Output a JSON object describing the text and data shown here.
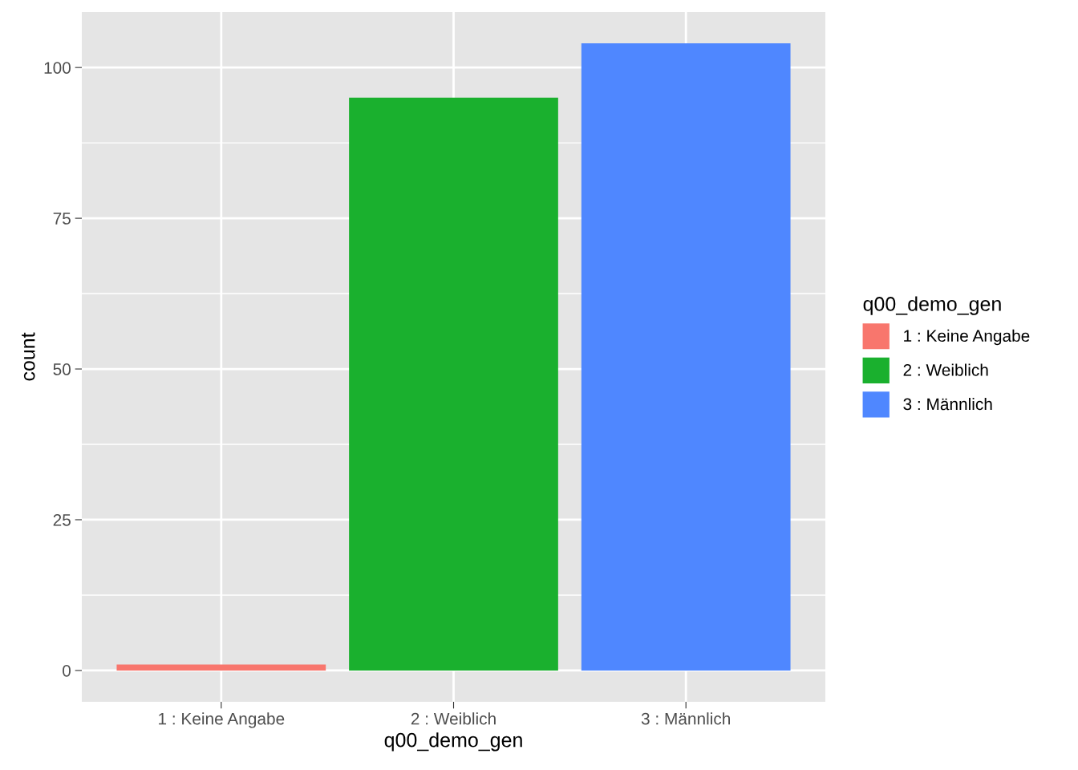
{
  "chart_data": {
    "type": "bar",
    "xlabel": "q00_demo_gen",
    "ylabel": "count",
    "legend_title": "q00_demo_gen",
    "categories": [
      "1 : Keine Angabe",
      "2 : Weiblich",
      "3 : Männlich"
    ],
    "series": [
      {
        "name": "1 : Keine Angabe",
        "color": "#f8766d",
        "values": [
          1,
          null,
          null
        ]
      },
      {
        "name": "2 : Weiblich",
        "color": "#1ab02e",
        "values": [
          null,
          95,
          null
        ]
      },
      {
        "name": "3 : Männlich",
        "color": "#4f87ff",
        "values": [
          null,
          null,
          104
        ]
      }
    ],
    "ylim": [
      -5.2,
      109.2
    ],
    "yticks": [
      0,
      25,
      50,
      75,
      100
    ],
    "grid": true,
    "legend": "right"
  }
}
